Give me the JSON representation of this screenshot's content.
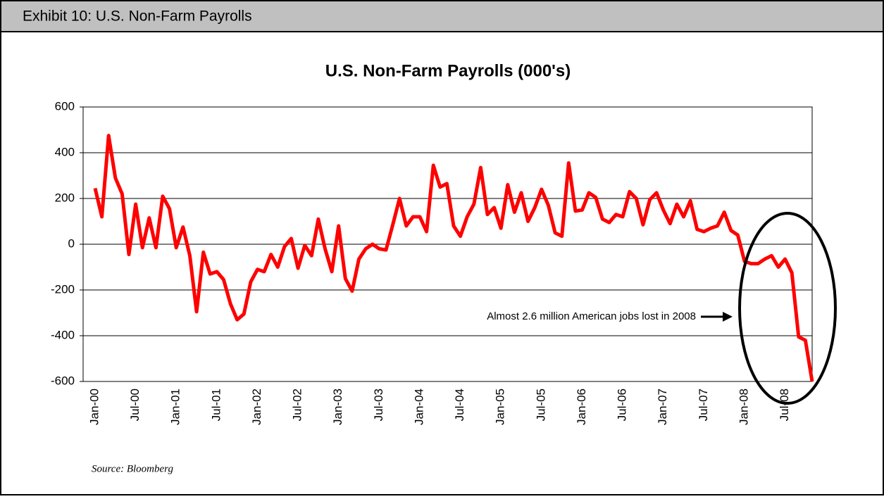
{
  "header": {
    "title": "Exhibit 10: U.S. Non-Farm Payrolls"
  },
  "chart_data": {
    "type": "line",
    "title": "U.S. Non-Farm Payrolls (000's)",
    "categories": [
      "Jan-00",
      null,
      null,
      null,
      null,
      null,
      "Jul-00",
      null,
      null,
      null,
      null,
      null,
      "Jan-01",
      null,
      null,
      null,
      null,
      null,
      "Jul-01",
      null,
      null,
      null,
      null,
      null,
      "Jan-02",
      null,
      null,
      null,
      null,
      null,
      "Jul-02",
      null,
      null,
      null,
      null,
      null,
      "Jan-03",
      null,
      null,
      null,
      null,
      null,
      "Jul-03",
      null,
      null,
      null,
      null,
      null,
      "Jan-04",
      null,
      null,
      null,
      null,
      null,
      "Jul-04",
      null,
      null,
      null,
      null,
      null,
      "Jan-05",
      null,
      null,
      null,
      null,
      null,
      "Jul-05",
      null,
      null,
      null,
      null,
      null,
      "Jan-06",
      null,
      null,
      null,
      null,
      null,
      "Jul-06",
      null,
      null,
      null,
      null,
      null,
      "Jan-07",
      null,
      null,
      null,
      null,
      null,
      "Jul-07",
      null,
      null,
      null,
      null,
      null,
      "Jan-08",
      null,
      null,
      null,
      null,
      null,
      "Jul-08",
      null,
      null,
      null,
      null
    ],
    "series": [
      {
        "name": "Non-Farm Payrolls",
        "color": "#ff0000",
        "values": [
          245,
          120,
          475,
          290,
          220,
          -45,
          175,
          -15,
          115,
          -15,
          210,
          155,
          -15,
          75,
          -50,
          -295,
          -35,
          -130,
          -120,
          -155,
          -260,
          -330,
          -305,
          -165,
          -110,
          -120,
          -45,
          -100,
          -10,
          25,
          -105,
          -5,
          -50,
          110,
          -20,
          -120,
          80,
          -150,
          -205,
          -65,
          -20,
          0,
          -20,
          -25,
          85,
          200,
          80,
          120,
          120,
          55,
          345,
          250,
          265,
          80,
          35,
          120,
          175,
          335,
          130,
          160,
          70,
          260,
          140,
          225,
          100,
          160,
          240,
          170,
          50,
          35,
          355,
          145,
          150,
          225,
          205,
          110,
          95,
          130,
          120,
          230,
          200,
          85,
          195,
          225,
          150,
          90,
          175,
          120,
          190,
          65,
          55,
          70,
          80,
          140,
          60,
          40,
          -75,
          -85,
          -85,
          -65,
          -50,
          -100,
          -65,
          -125,
          -405,
          -420,
          -600
        ]
      }
    ],
    "ylim": [
      -600,
      600
    ],
    "yticks": [
      -600,
      -400,
      -200,
      0,
      200,
      400,
      600
    ],
    "grid": true,
    "annotation": "Almost 2.6 million American jobs lost in 2008",
    "source": "Source: Bloomberg"
  }
}
